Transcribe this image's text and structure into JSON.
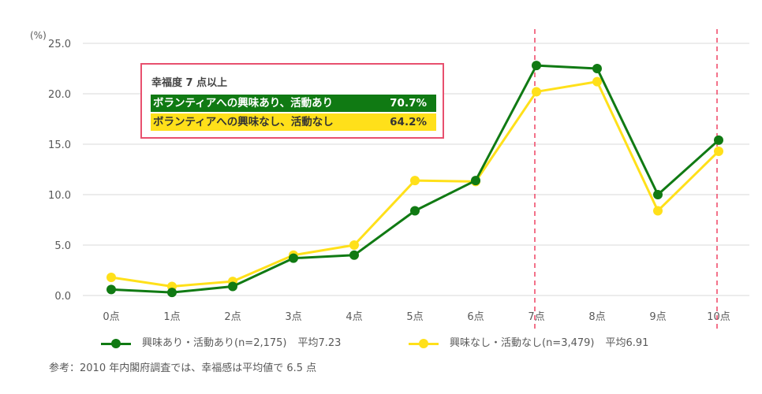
{
  "chart_data": {
    "type": "line",
    "title": "",
    "xlabel": "",
    "ylabel": "(%)",
    "ylim": [
      0,
      25
    ],
    "yticks": [
      "0.0",
      "5.0",
      "10.0",
      "15.0",
      "20.0",
      "25.0"
    ],
    "grid": true,
    "categories": [
      "0点",
      "1点",
      "2点",
      "3点",
      "4点",
      "5点",
      "6点",
      "7点",
      "8点",
      "9点",
      "10点"
    ],
    "series": [
      {
        "name": "興味あり・活動あり(n=2,175)",
        "mean_label": "平均7.23",
        "color": "#107a13",
        "values": [
          0.6,
          0.3,
          0.9,
          3.7,
          4.0,
          8.4,
          11.4,
          22.8,
          22.5,
          10.0,
          15.4
        ]
      },
      {
        "name": "興味なし・活動なし(n=3,479)",
        "mean_label": "平均6.91",
        "color": "#ffe01a",
        "values": [
          1.8,
          0.9,
          1.4,
          4.0,
          5.0,
          11.4,
          11.3,
          20.2,
          21.2,
          8.4,
          14.3
        ]
      }
    ],
    "annotations": {
      "dashed_lines_at": [
        "7点",
        "10点"
      ],
      "dashed_color": "#f0506e",
      "callout": {
        "title": "幸福度 7 点以上",
        "rows": [
          {
            "label": "ボランティアへの興味あり、活動あり",
            "value": "70.7%",
            "bg": "#107a13"
          },
          {
            "label": "ボランティアへの興味なし、活動なし",
            "value": "64.2%",
            "bg": "#ffe01a"
          }
        ]
      }
    },
    "legend_position": "bottom"
  },
  "footnote": "参考：2010 年内閣府調査では、幸福感は平均値で 6.5 点"
}
